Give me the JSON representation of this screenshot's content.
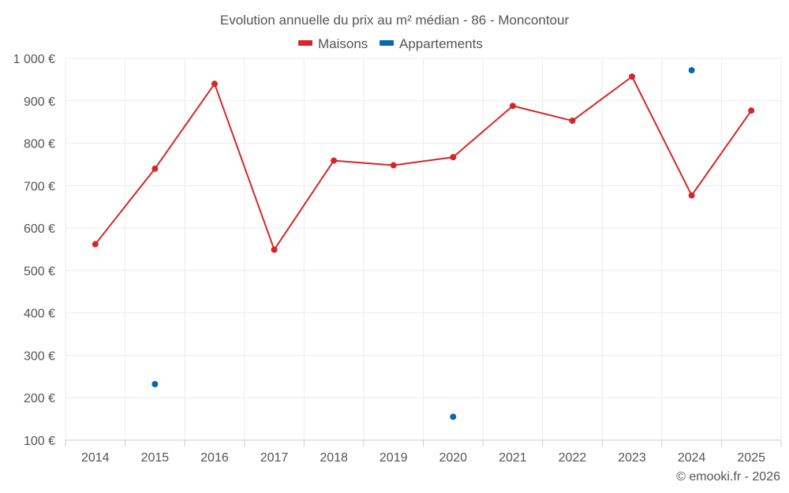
{
  "chart_data": {
    "type": "line",
    "title": "Evolution annuelle du prix au m² médian - 86 - Moncontour",
    "categories": [
      "2014",
      "2015",
      "2016",
      "2017",
      "2018",
      "2019",
      "2020",
      "2021",
      "2022",
      "2023",
      "2024",
      "2025"
    ],
    "ylim": [
      100,
      1000
    ],
    "yticks": [
      100,
      200,
      300,
      400,
      500,
      600,
      700,
      800,
      900,
      1000
    ],
    "ytick_labels": [
      "100 €",
      "200 €",
      "300 €",
      "400 €",
      "500 €",
      "600 €",
      "700 €",
      "800 €",
      "900 €",
      "1 000 €"
    ],
    "grid": true,
    "legend_position": "top-center",
    "series": [
      {
        "name": "Maisons",
        "color": "#d62728",
        "style": "line-markers",
        "values": [
          562,
          740,
          940,
          549,
          759,
          748,
          767,
          888,
          853,
          957,
          677,
          877
        ]
      },
      {
        "name": "Appartements",
        "color": "#0868a8",
        "style": "markers",
        "values": [
          null,
          232,
          null,
          null,
          null,
          null,
          155,
          null,
          null,
          null,
          972,
          null
        ]
      }
    ]
  },
  "footer": {
    "credit": "© emooki.fr - 2026"
  }
}
